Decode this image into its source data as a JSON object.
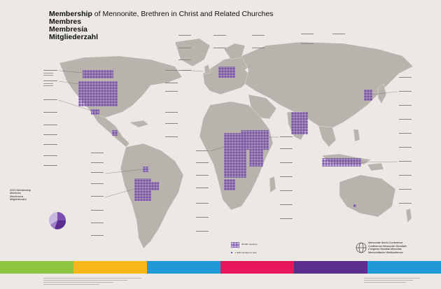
{
  "title": {
    "main_bold": "Membership",
    "main_rest": " of Mennonite, Brethren in Christ and Related Churches",
    "line2": "Membres",
    "line3": "Membresía",
    "line4": "Mitgliederzahl"
  },
  "legend": {
    "heading": [
      "2009 Membership",
      "Membres",
      "Membresía",
      "Mitgliederzahl"
    ],
    "scale_big": "25 000 members",
    "scale_small": "1 000 members or less"
  },
  "org": {
    "lines": [
      "Mennonite World Conference",
      "Conférence Mennonite Mondiale",
      "Congreso Mundial Menonita",
      "Mennonitische Weltkonferenz"
    ]
  },
  "colors": {
    "background": "#ece9e4",
    "land": "#b9b3ad",
    "membership_square": "#7a4fb0",
    "stripes": [
      "#8cc63f",
      "#f7b718",
      "#1f9ad6",
      "#e8175d",
      "#5b2d8e",
      "#1f9ad6"
    ]
  },
  "icons": [
    "globe-logo-icon",
    "pie-chart-icon"
  ]
}
